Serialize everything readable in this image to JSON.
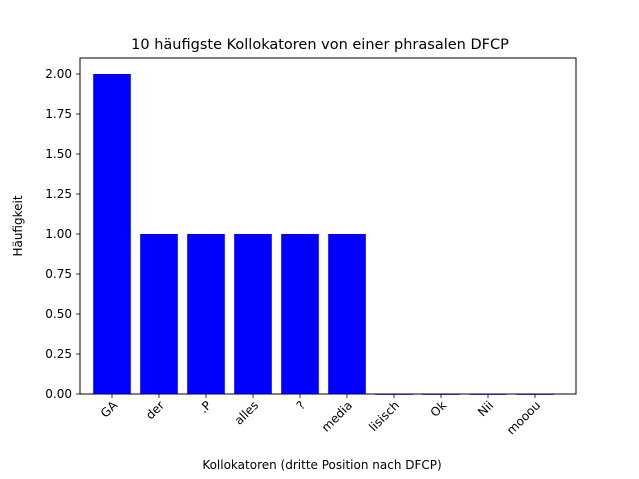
{
  "chart_data": {
    "type": "bar",
    "title": "10 häufigste Kollokatoren von einer phrasalen DFCP",
    "xlabel": "Kollokatoren (dritte Position nach DFCP)",
    "ylabel": "Häufigkeit",
    "categories": [
      "GA",
      "der",
      ".P",
      "alles",
      "?",
      "media",
      "lisisch",
      "Ok",
      "Nii",
      "mooou"
    ],
    "values": [
      2,
      1,
      1,
      1,
      1,
      1,
      0,
      0,
      0,
      0
    ],
    "ylim": [
      0,
      2.1
    ],
    "yticks": [
      "0.00",
      "0.25",
      "0.50",
      "0.75",
      "1.00",
      "1.25",
      "1.50",
      "1.75",
      "2.00"
    ],
    "bar_color": "#0000ff",
    "grid": false,
    "x_tick_rotation_deg": 45
  }
}
